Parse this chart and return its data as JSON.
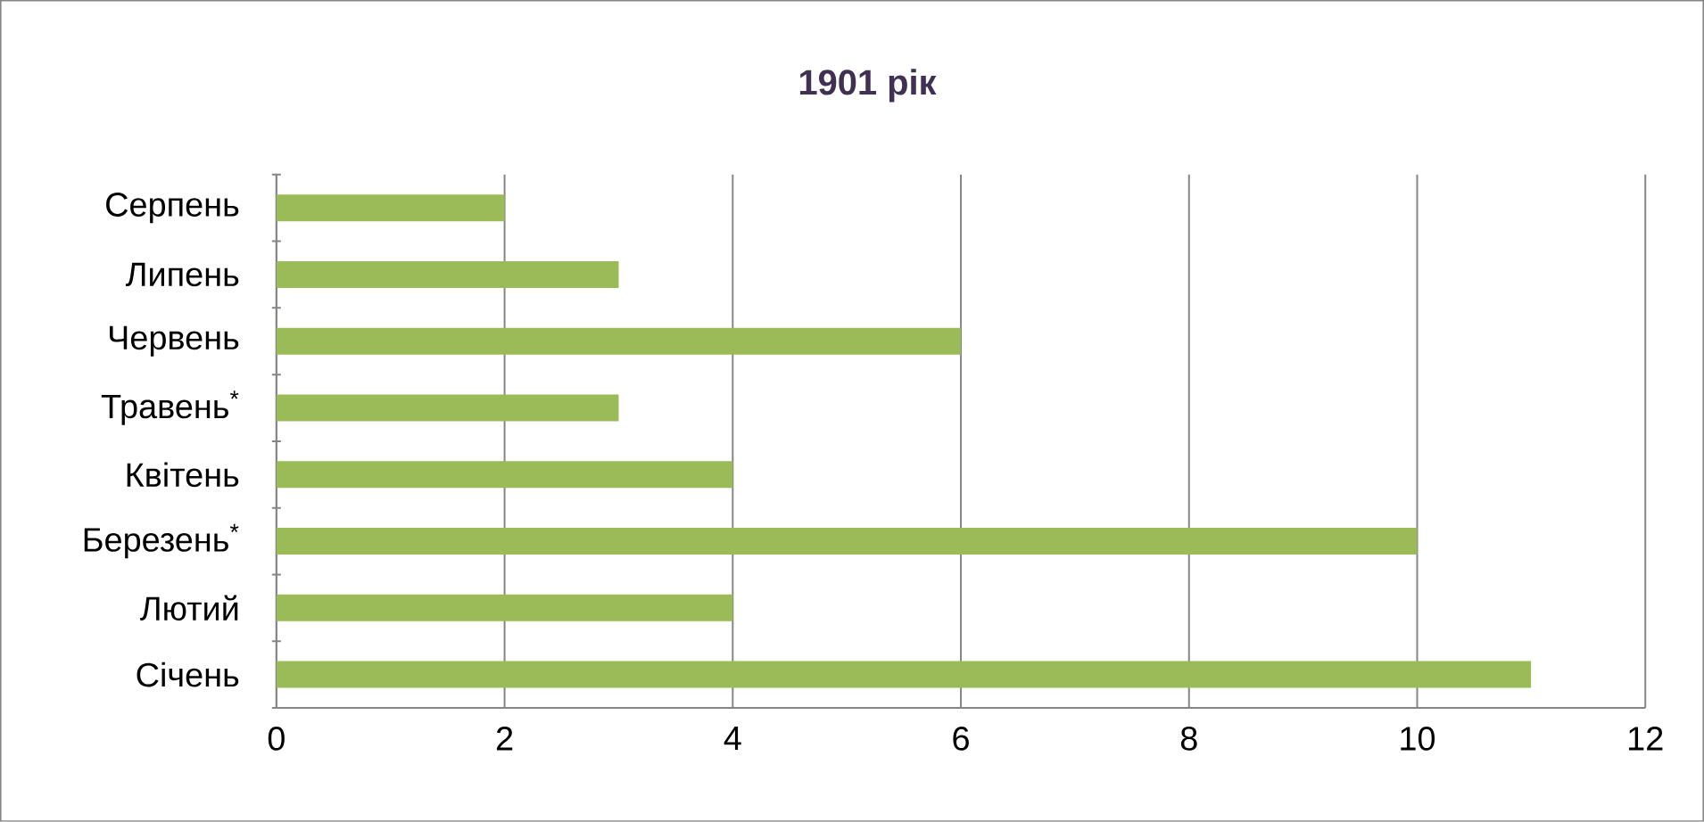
{
  "chart_data": {
    "type": "bar",
    "orientation": "horizontal",
    "title": "1901 рік",
    "categories": [
      "Серпень",
      "Липень",
      "Червень",
      "Травень$^{*}$",
      "Квітень",
      "Березень$^{*}$",
      "Лютий",
      "Січень"
    ],
    "values": [
      2,
      3,
      6,
      3,
      4,
      10,
      4,
      11
    ],
    "color": "#9bbb59",
    "xlim": [
      0,
      12
    ],
    "xticks": [
      0,
      2,
      4,
      6,
      8,
      10,
      12
    ],
    "grid": "x"
  }
}
